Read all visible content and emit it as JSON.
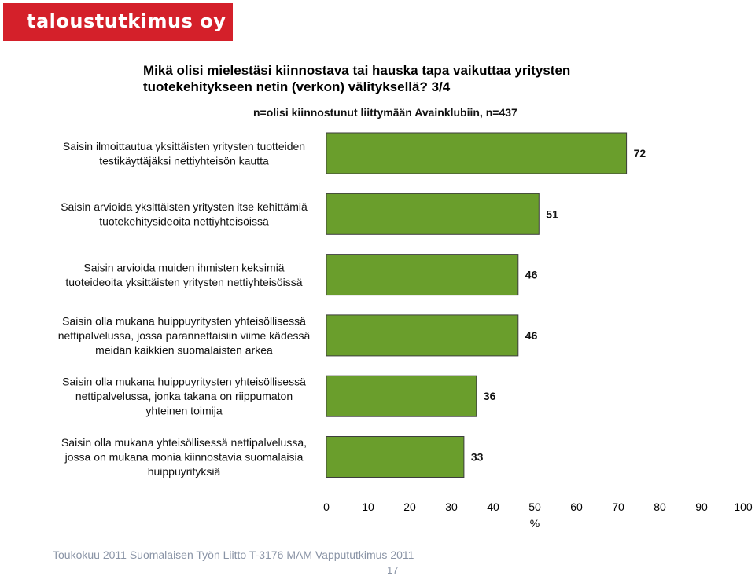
{
  "header": {
    "logo_text": "taloustutkimus oy",
    "title": "Mikä olisi mielestäsi kiinnostava tai hauska tapa vaikuttaa yritysten tuotekehitykseen netin (verkon) välityksellä? 3/4",
    "subtitle": "n=olisi kiinnostunut liittymään Avainklubiin, n=437"
  },
  "footer": {
    "text": "Toukokuu 2011  Suomalaisen Työn Liitto  T-3176 MAM  Vappututkimus 2011",
    "page_number": "17"
  },
  "colors": {
    "bar_fill": "#6a9e2c",
    "bar_stroke": "#3d3d3d",
    "logo_bg": "#d4202a"
  },
  "chart_data": {
    "type": "bar",
    "orientation": "horizontal",
    "categories": [
      [
        "Saisin ilmoittautua yksittäisten yritysten tuotteiden",
        "testikäyttäjäksi nettiyhteisön kautta"
      ],
      [
        "Saisin arvioida yksittäisten yritysten itse kehittämiä",
        "tuotekehitysideoita nettiyhteisöissä"
      ],
      [
        "Saisin arvioida muiden ihmisten keksimiä",
        "tuoteideoita yksittäisten yritysten nettiyhteisöissä"
      ],
      [
        "Saisin olla mukana huippuyritysten yhteisöllisessä",
        "nettipalvelussa, jossa parannettaisiin viime kädessä",
        "meidän kaikkien suomalaisten arkea"
      ],
      [
        "Saisin olla mukana huippuyritysten yhteisöllisessä",
        "nettipalvelussa, jonka takana on riippumaton",
        "yhteinen toimija"
      ],
      [
        "Saisin olla mukana yhteisöllisessä nettipalvelussa,",
        "jossa on mukana monia kiinnostavia suomalaisia",
        "huippuyrityksiä"
      ]
    ],
    "values": [
      72,
      51,
      46,
      46,
      36,
      33
    ],
    "xlim": [
      0,
      100
    ],
    "xticks": [
      "0",
      "10",
      "20",
      "30",
      "40",
      "50",
      "60",
      "70",
      "80",
      "90",
      "100"
    ],
    "xlabel": "%",
    "grid": false,
    "legend": "none"
  }
}
